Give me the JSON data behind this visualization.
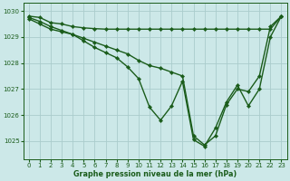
{
  "xlabel": "Graphe pression niveau de la mer (hPa)",
  "bg_color": "#cce8e8",
  "grid_color": "#aacccc",
  "line_color": "#1a5c1a",
  "ylim": [
    1024.3,
    1030.3
  ],
  "xlim": [
    -0.5,
    23.5
  ],
  "yticks": [
    1025,
    1026,
    1027,
    1028,
    1029,
    1030
  ],
  "xticks": [
    0,
    1,
    2,
    3,
    4,
    5,
    6,
    7,
    8,
    9,
    10,
    11,
    12,
    13,
    14,
    15,
    16,
    17,
    18,
    19,
    20,
    21,
    22,
    23
  ],
  "series1": [
    1029.8,
    1029.75,
    1029.55,
    1029.5,
    1029.4,
    1029.35,
    1029.32,
    1029.3,
    1029.3,
    1029.3,
    1029.3,
    1029.3,
    1029.3,
    1029.3,
    1029.3,
    1029.3,
    1029.3,
    1029.3,
    1029.3,
    1029.3,
    1029.3,
    1029.3,
    1029.3,
    1029.8
  ],
  "series2": [
    1029.75,
    1029.6,
    1029.4,
    1029.25,
    1029.1,
    1028.95,
    1028.8,
    1028.65,
    1028.5,
    1028.35,
    1028.1,
    1027.9,
    1027.8,
    1027.65,
    1027.5,
    1025.2,
    1024.85,
    1025.2,
    1026.4,
    1027.0,
    1026.9,
    1027.5,
    1029.4,
    1029.8
  ],
  "series3": [
    1029.7,
    1029.5,
    1029.3,
    1029.2,
    1029.1,
    1028.85,
    1028.6,
    1028.4,
    1028.2,
    1027.85,
    1027.4,
    1026.3,
    1025.8,
    1026.35,
    1027.3,
    1025.05,
    1024.8,
    1025.5,
    1026.5,
    1027.15,
    1026.35,
    1027.0,
    1029.0,
    1029.8
  ],
  "marker": "D",
  "marker_size": 2.2,
  "line_width": 1.0
}
